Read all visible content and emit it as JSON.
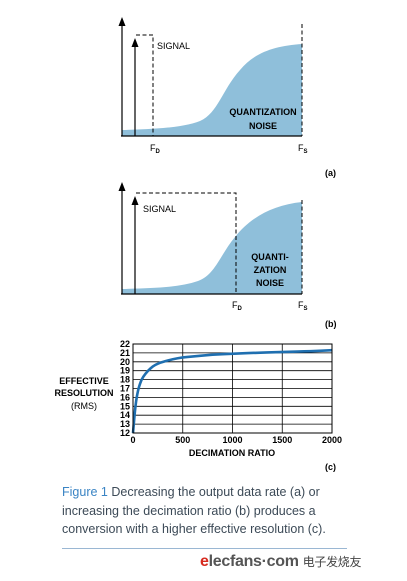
{
  "chart_data": [
    {
      "type": "area",
      "panel_label": "(a)",
      "series": [
        {
          "name": "SIGNAL",
          "shape": "rectangle",
          "extends_to": "FD"
        },
        {
          "name": "QUANTIZATION NOISE",
          "shape": "rising area",
          "extends_to": "FS"
        }
      ],
      "x_markers": [
        {
          "label": "F",
          "sub": "D"
        },
        {
          "label": "F",
          "sub": "S"
        }
      ],
      "annotations": {
        "signal": "SIGNAL",
        "noise_line1": "QUANTIZATION",
        "noise_line2": "NOISE"
      }
    },
    {
      "type": "area",
      "panel_label": "(b)",
      "series": [
        {
          "name": "SIGNAL",
          "shape": "rectangle",
          "extends_to": "FD"
        },
        {
          "name": "QUANTIZATION NOISE",
          "shape": "rising area",
          "extends_to": "FS"
        }
      ],
      "x_markers": [
        {
          "label": "F",
          "sub": "D"
        },
        {
          "label": "F",
          "sub": "S"
        }
      ],
      "annotations": {
        "signal": "SIGNAL",
        "noise_line1": "QUANTI-",
        "noise_line2": "ZATION",
        "noise_line3": "NOISE"
      }
    },
    {
      "type": "line",
      "panel_label": "(c)",
      "xlabel": "DECIMATION RATIO",
      "ylabel_lines": [
        "EFFECTIVE",
        "RESOLUTION",
        "(RMS)"
      ],
      "xlim": [
        0,
        2000
      ],
      "ylim": [
        12,
        22
      ],
      "x_ticks": [
        "0",
        "500",
        "1000",
        "1500",
        "2000"
      ],
      "y_ticks": [
        "12",
        "13",
        "14",
        "15",
        "16",
        "17",
        "18",
        "19",
        "20",
        "21",
        "22"
      ],
      "grid": true,
      "x": [
        0,
        25,
        50,
        75,
        100,
        150,
        200,
        250,
        300,
        400,
        500,
        600,
        800,
        1000,
        1200,
        1500,
        1800,
        2000
      ],
      "y": [
        12.0,
        15.2,
        16.8,
        17.7,
        18.3,
        19.0,
        19.5,
        19.8,
        20.0,
        20.3,
        20.5,
        20.6,
        20.8,
        20.9,
        21.0,
        21.1,
        21.2,
        21.3
      ]
    }
  ],
  "caption": {
    "figure_label": "Figure 1",
    "text": "Decreasing the output data rate (a) or increasing the decimation ratio (b) produces a conversion with a higher effective resolution (c)."
  },
  "watermark": {
    "logo_e": "e",
    "logo_rest": "lecfans·com",
    "logo_cn": "电子发烧友"
  },
  "colors": {
    "noise_fill": "#8fbfda",
    "curve": "#1f6fb0",
    "caption_label": "#3a84c4",
    "logo_accent": "#d62a1f"
  }
}
